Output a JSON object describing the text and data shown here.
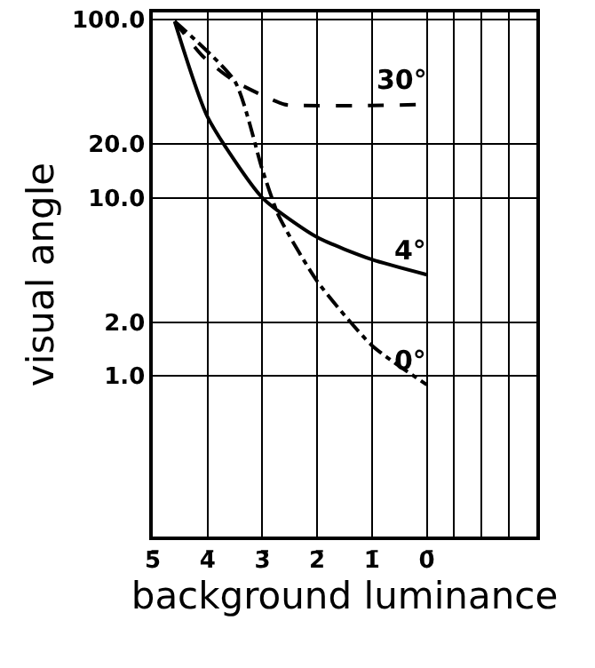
{
  "chart_data": {
    "type": "line",
    "xlabel": "background luminance",
    "ylabel": "visual angle",
    "log": "y",
    "grid": true,
    "marker": "none",
    "xlim": [
      -5,
      2
    ],
    "xticks": [
      {
        "value": -5,
        "label": "5̄"
      },
      {
        "value": -4,
        "label": "4̄"
      },
      {
        "value": -3,
        "label": "3̄"
      },
      {
        "value": -2,
        "label": "2̄"
      },
      {
        "value": -1,
        "label": "1̄"
      },
      {
        "value": 0,
        "label": "0̄"
      },
      {
        "value": 0.5,
        "label": null
      },
      {
        "value": 1,
        "label": null
      },
      {
        "value": 1.5,
        "label": null
      }
    ],
    "ylim": [
      0.125,
      110
    ],
    "yticks": [
      {
        "value": 1,
        "label": "1.0"
      },
      {
        "value": 2,
        "label": "2.0"
      },
      {
        "value": 10,
        "label": "10.0"
      },
      {
        "value": 20,
        "label": "20.0"
      },
      {
        "value": 100,
        "label": "100.0"
      }
    ],
    "series": [
      {
        "name": "4°",
        "color": "#000000",
        "line_style": "solid",
        "x": [
          -4.6,
          -4.0,
          -3.0,
          -2.0,
          -1.0,
          0.0
        ],
        "values": [
          98,
          28.5,
          10,
          6.0,
          4.5,
          3.7
        ]
      },
      {
        "name": "30°",
        "color": "#000000",
        "line_style": "dashed",
        "x": [
          -4.6,
          -4.1,
          -3.5,
          -2.6,
          -2.3,
          -1.0,
          0.0
        ],
        "values": [
          98,
          63,
          45,
          33.5,
          33,
          33,
          33.5
        ]
      },
      {
        "name": "0°",
        "color": "#000000",
        "line_style": "dashdot",
        "x": [
          -4.6,
          -3.5,
          -3.0,
          -2.7,
          -2.0,
          -1.0,
          0.0
        ],
        "values": [
          98,
          45,
          14.4,
          7.9,
          3.4,
          1.48,
          0.89
        ]
      }
    ]
  }
}
